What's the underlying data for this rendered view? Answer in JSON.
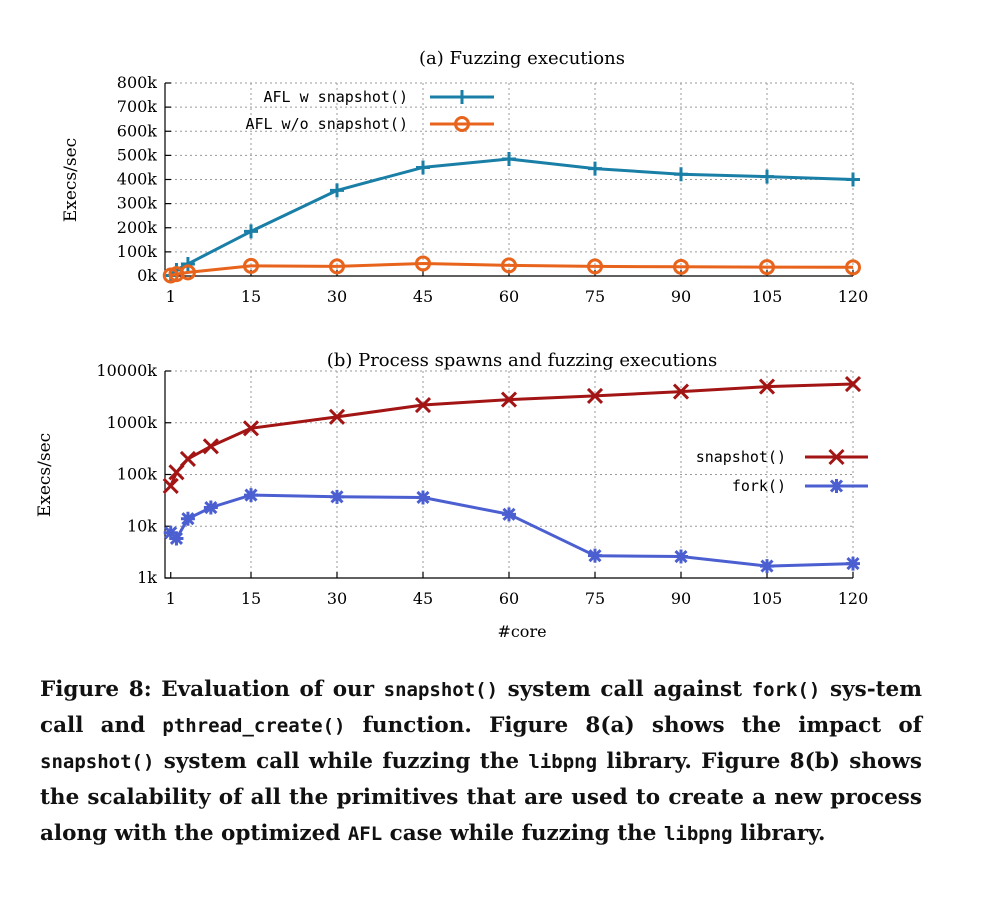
{
  "chart_data": [
    {
      "type": "line",
      "title": "(a) Fuzzing executions",
      "ylabel": "Execs/sec",
      "xlabel": "",
      "x_ticks": [
        1,
        15,
        30,
        45,
        60,
        75,
        90,
        105,
        120
      ],
      "y_tick_labels": [
        "0k",
        "100k",
        "200k",
        "300k",
        "400k",
        "500k",
        "600k",
        "700k",
        "800k"
      ],
      "ylim": [
        0,
        800000
      ],
      "xlim": [
        0,
        120
      ],
      "grid": true,
      "legend_position": "top-left",
      "series": [
        {
          "name": "AFL w snapshot()",
          "color": "#1a7fa6",
          "marker": "plus",
          "x": [
            1,
            2,
            4,
            15,
            30,
            45,
            60,
            75,
            90,
            105,
            120
          ],
          "y": [
            2000,
            25000,
            50000,
            185000,
            355000,
            450000,
            485000,
            445000,
            422000,
            412000,
            400000
          ]
        },
        {
          "name": "AFL w/o snapshot()",
          "color": "#e8641c",
          "marker": "circle",
          "x": [
            1,
            2,
            4,
            15,
            30,
            45,
            60,
            75,
            90,
            105,
            120
          ],
          "y": [
            2000,
            8000,
            15000,
            42000,
            40000,
            52000,
            44000,
            40000,
            38000,
            37000,
            36000
          ]
        }
      ]
    },
    {
      "type": "line",
      "title": "(b) Process spawns and fuzzing executions",
      "ylabel": "Execs/sec",
      "xlabel": "#core",
      "x_ticks": [
        1,
        15,
        30,
        45,
        60,
        75,
        90,
        105,
        120
      ],
      "y_tick_labels": [
        "1k",
        "10k",
        "100k",
        "1000k",
        "10000k"
      ],
      "y_scale": "log",
      "ylim": [
        1000,
        10000000
      ],
      "xlim": [
        0,
        120
      ],
      "grid": true,
      "legend_position": "right",
      "series": [
        {
          "name": "snapshot()",
          "color": "#a31515",
          "marker": "x",
          "x": [
            1,
            2,
            4,
            8,
            15,
            30,
            45,
            60,
            75,
            90,
            105,
            120
          ],
          "y": [
            60000,
            110000,
            200000,
            350000,
            780000,
            1300000,
            2200000,
            2800000,
            3300000,
            4000000,
            5000000,
            5600000
          ]
        },
        {
          "name": "fork()",
          "color": "#4b5fd1",
          "marker": "star",
          "x": [
            1,
            2,
            4,
            8,
            15,
            30,
            45,
            60,
            75,
            90,
            105,
            120
          ],
          "y": [
            7500,
            5800,
            14000,
            23000,
            40000,
            37000,
            36000,
            17000,
            2700,
            2600,
            1700,
            1900
          ]
        }
      ]
    }
  ],
  "caption": {
    "p1": "Figure 8: Evaluation of our ",
    "c1": "snapshot()",
    "p2": " system call against ",
    "c2": "fork()",
    "p3": " sys-tem call and ",
    "c3": "pthread_create()",
    "p4": " function. Figure 8(a) shows the impact of ",
    "c4": "snapshot()",
    "p5": " system call while fuzzing the ",
    "c5": "libpng",
    "p6": " library. Figure 8(b) shows the scalability of all the primitives that are used to create a new process along with the optimized ",
    "c6": "AFL",
    "p7": " case while fuzzing the ",
    "c7": "libpng",
    "p8": " library."
  }
}
